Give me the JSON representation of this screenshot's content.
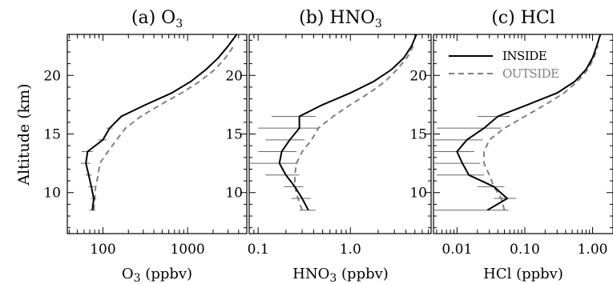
{
  "figure": {
    "ylabel": "Altitude (km)"
  },
  "legend": {
    "placement": "top-right of panel (c)",
    "entries": [
      {
        "label": "INSIDE",
        "color": "#000000",
        "style": "solid"
      },
      {
        "label": "OUTSIDE",
        "color": "#808080",
        "style": "dashed"
      }
    ]
  },
  "chart_data": [
    {
      "type": "line",
      "panel_title": "(a) O",
      "panel_title_sub": "3",
      "xlabel": "O",
      "xlabel_sub": "3",
      "xlabel_rest": " (ppbv)",
      "xscale": "log",
      "xlim": [
        38,
        5000
      ],
      "ylim": [
        6.5,
        23.5
      ],
      "xticks": [
        {
          "v": 100,
          "label": "100"
        },
        {
          "v": 1000,
          "label": "1000"
        }
      ],
      "yticks": [
        {
          "v": 10,
          "label": "10"
        },
        {
          "v": 15,
          "label": "15"
        },
        {
          "v": 20,
          "label": "20"
        }
      ],
      "series": [
        {
          "name": "INSIDE",
          "color": "#000000",
          "dash": "",
          "y": [
            8.5,
            9.5,
            10.5,
            11.5,
            12.5,
            13.5,
            14.5,
            15.5,
            16.5,
            17.5,
            18.5,
            19.5,
            20.5,
            21.5,
            22.5,
            23.5
          ],
          "x": [
            75,
            78,
            73,
            68,
            63,
            66,
            100,
            120,
            165,
            320,
            650,
            1100,
            1650,
            2300,
            3000,
            3800
          ],
          "err": [
            6,
            6,
            6,
            6,
            8,
            10,
            12,
            10,
            0,
            0,
            0,
            0,
            0,
            0,
            0,
            0
          ]
        },
        {
          "name": "OUTSIDE",
          "color": "#808080",
          "dash": "7,5",
          "y": [
            8.5,
            9.5,
            10.5,
            11.5,
            12.5,
            13.5,
            14.5,
            15.5,
            16.5,
            17.5,
            18.5,
            19.5,
            20.5,
            21.5,
            22.5
          ],
          "x": [
            78,
            80,
            82,
            88,
            92,
            115,
            145,
            185,
            280,
            480,
            850,
            1400,
            2100,
            2800,
            3500
          ]
        }
      ]
    },
    {
      "type": "line",
      "panel_title": "(b) HNO",
      "panel_title_sub": "3",
      "xlabel": "HNO",
      "xlabel_sub": "3",
      "xlabel_rest": " (ppbv)",
      "xscale": "log",
      "xlim": [
        0.08,
        7.5
      ],
      "ylim": [
        6.5,
        23.5
      ],
      "xticks": [
        {
          "v": 0.1,
          "label": "0.1"
        },
        {
          "v": 1.0,
          "label": "1.0"
        }
      ],
      "yticks": [
        {
          "v": 10,
          "label": "10"
        },
        {
          "v": 15,
          "label": "15"
        },
        {
          "v": 20,
          "label": "20"
        }
      ],
      "series": [
        {
          "name": "INSIDE",
          "color": "#000000",
          "dash": "",
          "y": [
            8.5,
            9.5,
            10.5,
            11.5,
            12.5,
            13.5,
            14.5,
            15.5,
            16.5,
            17.5,
            18.5,
            19.5,
            20.5,
            21.5,
            22.5,
            23.5
          ],
          "x": [
            0.35,
            0.3,
            0.25,
            0.2,
            0.17,
            0.18,
            0.22,
            0.28,
            0.28,
            0.5,
            1.0,
            1.8,
            2.8,
            3.8,
            4.6,
            5.2
          ],
          "err": [
            0.07,
            0.07,
            0.06,
            0.08,
            0.1,
            0.08,
            0.1,
            0.18,
            0.14,
            0,
            0,
            0,
            0,
            0,
            0,
            0
          ]
        },
        {
          "name": "OUTSIDE",
          "color": "#808080",
          "dash": "7,5",
          "y": [
            8.5,
            9.5,
            10.5,
            11.5,
            12.5,
            13.5,
            14.5,
            15.5,
            16.5,
            17.5,
            18.5,
            19.5,
            20.5,
            21.5,
            22.5
          ],
          "x": [
            0.3,
            0.27,
            0.25,
            0.25,
            0.26,
            0.3,
            0.38,
            0.45,
            0.65,
            1.0,
            1.6,
            2.4,
            3.2,
            4.1,
            4.8
          ]
        }
      ]
    },
    {
      "type": "line",
      "panel_title": "(c) HCl",
      "panel_title_sub": "",
      "xlabel": "HCl (ppbv)",
      "xlabel_sub": "",
      "xlabel_rest": "",
      "xscale": "log",
      "xlim": [
        0.0045,
        2.0
      ],
      "ylim": [
        6.5,
        23.5
      ],
      "xticks": [
        {
          "v": 0.01,
          "label": "0.01"
        },
        {
          "v": 0.1,
          "label": "0.10"
        },
        {
          "v": 1.0,
          "label": "1.00"
        }
      ],
      "yticks": [
        {
          "v": 10,
          "label": "10"
        },
        {
          "v": 15,
          "label": "15"
        },
        {
          "v": 20,
          "label": "20"
        }
      ],
      "series": [
        {
          "name": "INSIDE",
          "color": "#000000",
          "dash": "",
          "y": [
            8.5,
            9.5,
            10.5,
            11.5,
            12.5,
            13.5,
            14.5,
            15.5,
            16.5,
            17.5,
            18.5,
            19.5,
            20.5,
            21.5,
            22.5,
            23.5
          ],
          "x": [
            0.028,
            0.055,
            0.035,
            0.015,
            0.012,
            0.01,
            0.014,
            0.025,
            0.04,
            0.11,
            0.3,
            0.55,
            0.8,
            1.0,
            1.15,
            1.3
          ],
          "err": [
            0.03,
            0.02,
            0.015,
            0.01,
            0.01,
            0.008,
            0.01,
            0.02,
            0.02,
            0,
            0,
            0,
            0,
            0,
            0,
            0
          ]
        },
        {
          "name": "OUTSIDE",
          "color": "#808080",
          "dash": "7,5",
          "y": [
            8.5,
            9.5,
            10.5,
            11.5,
            12.5,
            13.5,
            14.5,
            15.5,
            16.5,
            17.5,
            18.5,
            19.5,
            20.5,
            21.5,
            22.5
          ],
          "x": [
            0.05,
            0.045,
            0.035,
            0.03,
            0.025,
            0.025,
            0.03,
            0.05,
            0.1,
            0.2,
            0.38,
            0.6,
            0.85,
            1.05,
            1.2
          ]
        }
      ]
    }
  ]
}
